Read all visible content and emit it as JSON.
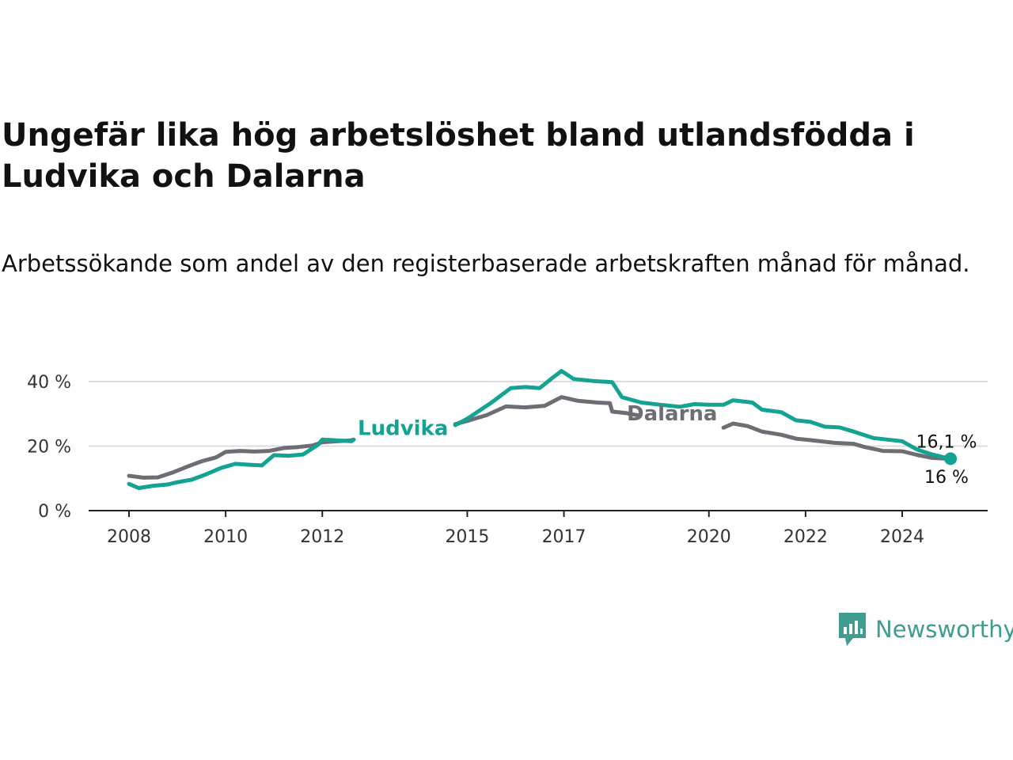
{
  "chart_data": {
    "type": "line",
    "title": "Ungefär lika hög arbetslöshet bland utlandsfödda i Ludvika och Dalarna",
    "subtitle": "Arbetssökande som andel av den registerbaserade arbetskraften månad för månad.",
    "y_ticks": [
      "0 %",
      "20 %",
      "40 %"
    ],
    "y_tick_values": [
      0,
      20,
      40
    ],
    "ylim": [
      0,
      44
    ],
    "x_ticks": [
      "2008",
      "2010",
      "2012",
      "2015",
      "2017",
      "2020",
      "2022",
      "2024"
    ],
    "x_tick_values": [
      2008,
      2010,
      2012,
      2015,
      2017,
      2020,
      2022,
      2024
    ],
    "xlim": [
      2007.2,
      2025.8
    ],
    "grid": "horizontal",
    "series": [
      {
        "name": "Ludvika",
        "color": "#14a393",
        "end_label": "16,1 %",
        "points": [
          [
            2008.0,
            8.3
          ],
          [
            2008.2,
            7.0
          ],
          [
            2008.5,
            7.7
          ],
          [
            2008.8,
            8.1
          ],
          [
            2009.0,
            8.8
          ],
          [
            2009.3,
            9.6
          ],
          [
            2009.6,
            11.3
          ],
          [
            2009.9,
            13.2
          ],
          [
            2010.2,
            14.5
          ],
          [
            2010.5,
            14.2
          ],
          [
            2010.75,
            14.0
          ],
          [
            2011.0,
            17.2
          ],
          [
            2011.3,
            17.0
          ],
          [
            2011.6,
            17.4
          ],
          [
            2011.9,
            20.3
          ],
          [
            2012.0,
            22.0
          ],
          [
            2012.3,
            21.8
          ],
          [
            2012.6,
            21.5
          ],
          [
            2012.65,
            22.0
          ],
          [
            2014.75,
            26.5
          ],
          [
            2015.0,
            28.5
          ],
          [
            2015.5,
            33.5
          ],
          [
            2015.9,
            38.0
          ],
          [
            2016.2,
            38.3
          ],
          [
            2016.5,
            38.0
          ],
          [
            2016.75,
            41.0
          ],
          [
            2016.95,
            43.3
          ],
          [
            2017.2,
            40.8
          ],
          [
            2017.6,
            40.2
          ],
          [
            2018.0,
            39.8
          ],
          [
            2018.2,
            35.2
          ],
          [
            2018.6,
            33.5
          ],
          [
            2019.0,
            32.8
          ],
          [
            2019.4,
            32.2
          ],
          [
            2019.7,
            33.0
          ],
          [
            2020.0,
            32.8
          ],
          [
            2020.3,
            32.8
          ],
          [
            2020.5,
            34.2
          ],
          [
            2020.9,
            33.5
          ],
          [
            2021.1,
            31.3
          ],
          [
            2021.5,
            30.5
          ],
          [
            2021.8,
            28.0
          ],
          [
            2022.1,
            27.5
          ],
          [
            2022.4,
            26.0
          ],
          [
            2022.7,
            25.8
          ],
          [
            2023.0,
            24.5
          ],
          [
            2023.4,
            22.5
          ],
          [
            2023.7,
            22.0
          ],
          [
            2024.0,
            21.5
          ],
          [
            2024.3,
            19.0
          ],
          [
            2024.6,
            17.5
          ],
          [
            2024.9,
            16.4
          ],
          [
            2025.0,
            16.1
          ]
        ]
      },
      {
        "name": "Dalarna",
        "color": "#6e6d73",
        "end_label": "16 %",
        "points": [
          [
            2008.0,
            10.8
          ],
          [
            2008.3,
            10.2
          ],
          [
            2008.6,
            10.3
          ],
          [
            2008.9,
            11.8
          ],
          [
            2009.2,
            13.6
          ],
          [
            2009.5,
            15.3
          ],
          [
            2009.8,
            16.5
          ],
          [
            2010.0,
            18.2
          ],
          [
            2010.3,
            18.5
          ],
          [
            2010.6,
            18.3
          ],
          [
            2010.9,
            18.5
          ],
          [
            2011.2,
            19.4
          ],
          [
            2011.5,
            19.7
          ],
          [
            2011.8,
            20.2
          ],
          [
            2012.0,
            21.2
          ],
          [
            2012.3,
            21.5
          ],
          [
            2012.6,
            21.8
          ],
          [
            2012.65,
            22.0
          ],
          [
            2014.75,
            26.8
          ],
          [
            2015.0,
            27.8
          ],
          [
            2015.4,
            29.6
          ],
          [
            2015.8,
            32.3
          ],
          [
            2016.2,
            32.0
          ],
          [
            2016.6,
            32.5
          ],
          [
            2016.95,
            35.2
          ],
          [
            2017.3,
            34.0
          ],
          [
            2017.7,
            33.5
          ],
          [
            2017.95,
            33.3
          ],
          [
            2018.0,
            30.7
          ],
          [
            2018.3,
            30.2
          ],
          [
            2018.55,
            29.5
          ],
          [
            2020.3,
            25.7
          ],
          [
            2020.5,
            27.0
          ],
          [
            2020.8,
            26.2
          ],
          [
            2021.1,
            24.5
          ],
          [
            2021.5,
            23.5
          ],
          [
            2021.8,
            22.3
          ],
          [
            2022.2,
            21.7
          ],
          [
            2022.6,
            21.0
          ],
          [
            2023.0,
            20.7
          ],
          [
            2023.2,
            19.8
          ],
          [
            2023.6,
            18.5
          ],
          [
            2024.0,
            18.4
          ],
          [
            2024.3,
            17.3
          ],
          [
            2024.6,
            16.4
          ],
          [
            2025.0,
            16.0
          ]
        ]
      }
    ]
  },
  "brand": {
    "name": "Newsworthy",
    "color": "#3f9c8f"
  }
}
